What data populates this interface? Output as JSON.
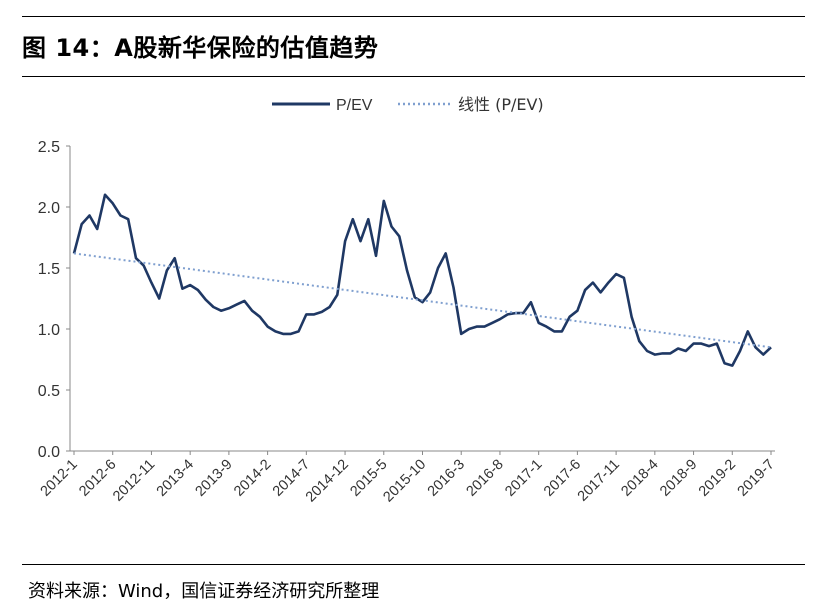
{
  "title": "图 14：A股新华保险的估值趋势",
  "source": "资料来源：Wind，国信证券经济研究所整理",
  "colors": {
    "series": "#1f3864",
    "trend": "#7f9fcf"
  },
  "chart_data": {
    "type": "line",
    "title": "图 14：A股新华保险的估值趋势",
    "xlabel": "",
    "ylabel": "",
    "ylim": [
      0,
      2.5
    ],
    "yticks": [
      0.0,
      0.5,
      1.0,
      1.5,
      2.0,
      2.5
    ],
    "ytick_labels": [
      "0.0",
      "0.5",
      "1.0",
      "1.5",
      "2.0",
      "2.5"
    ],
    "xtick_labels": [
      "2012-1",
      "2012-6",
      "2012-11",
      "2013-4",
      "2013-9",
      "2014-2",
      "2014-7",
      "2014-12",
      "2015-5",
      "2015-10",
      "2016-3",
      "2016-8",
      "2017-1",
      "2017-6",
      "2017-11",
      "2018-4",
      "2018-9",
      "2019-2",
      "2019-7"
    ],
    "legend_position": "top-center",
    "grid": false,
    "series": [
      {
        "name": "P/EV",
        "style": "solid",
        "x": [
          "2012-1",
          "2012-2",
          "2012-3",
          "2012-4",
          "2012-5",
          "2012-6",
          "2012-7",
          "2012-8",
          "2012-9",
          "2012-10",
          "2012-11",
          "2012-12",
          "2013-1",
          "2013-2",
          "2013-3",
          "2013-4",
          "2013-5",
          "2013-6",
          "2013-7",
          "2013-8",
          "2013-9",
          "2013-10",
          "2013-11",
          "2013-12",
          "2014-1",
          "2014-2",
          "2014-3",
          "2014-4",
          "2014-5",
          "2014-6",
          "2014-7",
          "2014-8",
          "2014-9",
          "2014-10",
          "2014-11",
          "2014-12",
          "2015-1",
          "2015-2",
          "2015-3",
          "2015-4",
          "2015-5",
          "2015-6",
          "2015-7",
          "2015-8",
          "2015-9",
          "2015-10",
          "2015-11",
          "2015-12",
          "2016-1",
          "2016-2",
          "2016-3",
          "2016-4",
          "2016-5",
          "2016-6",
          "2016-7",
          "2016-8",
          "2016-9",
          "2016-10",
          "2016-11",
          "2016-12",
          "2017-1",
          "2017-2",
          "2017-3",
          "2017-4",
          "2017-5",
          "2017-6",
          "2017-7",
          "2017-8",
          "2017-9",
          "2017-10",
          "2017-11",
          "2017-12",
          "2018-1",
          "2018-2",
          "2018-3",
          "2018-4",
          "2018-5",
          "2018-6",
          "2018-7",
          "2018-8",
          "2018-9",
          "2018-10",
          "2018-11",
          "2018-12",
          "2019-1",
          "2019-2",
          "2019-3",
          "2019-4",
          "2019-5",
          "2019-6",
          "2019-7"
        ],
        "values": [
          1.62,
          1.86,
          1.93,
          1.82,
          2.1,
          2.03,
          1.93,
          1.9,
          1.58,
          1.52,
          1.38,
          1.25,
          1.48,
          1.58,
          1.33,
          1.36,
          1.32,
          1.24,
          1.18,
          1.15,
          1.17,
          1.2,
          1.23,
          1.15,
          1.1,
          1.02,
          0.98,
          0.96,
          0.96,
          0.98,
          1.12,
          1.12,
          1.14,
          1.18,
          1.28,
          1.72,
          1.9,
          1.72,
          1.9,
          1.6,
          2.05,
          1.84,
          1.76,
          1.48,
          1.26,
          1.22,
          1.3,
          1.5,
          1.62,
          1.34,
          0.96,
          1.0,
          1.02,
          1.02,
          1.05,
          1.08,
          1.12,
          1.13,
          1.13,
          1.22,
          1.05,
          1.02,
          0.98,
          0.98,
          1.1,
          1.15,
          1.32,
          1.38,
          1.3,
          1.38,
          1.45,
          1.42,
          1.1,
          0.9,
          0.82,
          0.79,
          0.8,
          0.8,
          0.84,
          0.82,
          0.88,
          0.88,
          0.86,
          0.88,
          0.72,
          0.7,
          0.82,
          0.98,
          0.85,
          0.79,
          0.85
        ]
      },
      {
        "name": "线性 (P/EV)",
        "style": "dotted",
        "x": [
          "2012-1",
          "2019-7"
        ],
        "values": [
          1.62,
          0.85
        ]
      }
    ]
  }
}
